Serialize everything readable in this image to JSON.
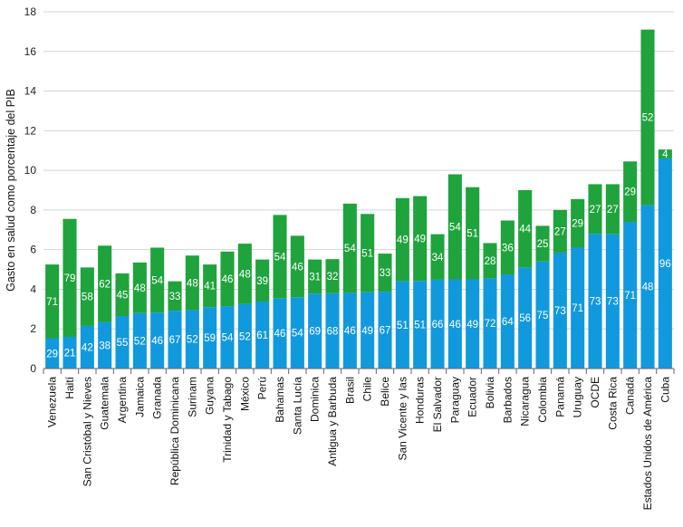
{
  "chart_data": {
    "type": "bar",
    "stacked": true,
    "title": "",
    "xlabel": "",
    "ylabel": "Gasto en salud como porcentaje del PIB",
    "ylim": [
      0,
      18
    ],
    "yticks": [
      0,
      2,
      4,
      6,
      8,
      10,
      12,
      14,
      16,
      18
    ],
    "grid": true,
    "legend": "none",
    "colors": {
      "bottom": "#1199DD",
      "top": "#1FA33C",
      "grid": "#d4d4d4"
    },
    "categories": [
      "Venezuela",
      "Haití",
      "San Cristóbal y Nieves",
      "Guatemala",
      "Argentina",
      "Jamaica",
      "Granada",
      "República Dominicana",
      "Surinam",
      "Guyana",
      "Trinidad y Tabago",
      "México",
      "Perú",
      "Bahamas",
      "Santa Lucía",
      "Dominica",
      "Antigua y Barbuda",
      "Brasil",
      "Chile",
      "Belice",
      "San Vicente y las",
      "Honduras",
      "El Salvador",
      "Paraguay",
      "Ecuador",
      "Bolivia",
      "Barbados",
      "Nicaragua",
      "Colombia",
      "Panamá",
      "Uruguay",
      "OCDE",
      "Costa Rica",
      "Canadá",
      "Estados Unidos de América",
      "Cuba"
    ],
    "series": [
      {
        "values": [
          1.53,
          1.6,
          2.15,
          2.35,
          2.65,
          2.8,
          2.82,
          2.92,
          2.95,
          3.1,
          3.15,
          3.25,
          3.38,
          3.55,
          3.6,
          3.78,
          3.8,
          3.82,
          3.85,
          3.88,
          4.4,
          4.42,
          4.48,
          4.5,
          4.5,
          4.55,
          4.75,
          5.1,
          5.4,
          5.85,
          6.1,
          6.8,
          6.8,
          7.4,
          8.25,
          10.6
        ],
        "labels": [
          "29",
          "21",
          "42",
          "38",
          "55",
          "52",
          "46",
          "67",
          "52",
          "59",
          "54",
          "52",
          "61",
          "46",
          "54",
          "69",
          "68",
          "46",
          "49",
          "67",
          "51",
          "51",
          "66",
          "46",
          "49",
          "72",
          "64",
          "56",
          "75",
          "73",
          "71",
          "73",
          "73",
          "71",
          "48",
          "96"
        ]
      },
      {
        "values": [
          3.72,
          5.95,
          2.95,
          3.85,
          2.15,
          2.55,
          3.28,
          1.48,
          2.75,
          2.15,
          2.75,
          3.05,
          2.12,
          4.2,
          3.1,
          1.72,
          1.72,
          4.5,
          3.95,
          1.92,
          4.2,
          4.28,
          2.3,
          5.3,
          4.65,
          1.78,
          2.72,
          3.9,
          1.8,
          2.15,
          2.45,
          2.5,
          2.5,
          3.05,
          8.85,
          0.45
        ],
        "labels": [
          "71",
          "79",
          "58",
          "62",
          "45",
          "48",
          "54",
          "33",
          "48",
          "41",
          "46",
          "48",
          "39",
          "54",
          "46",
          "31",
          "32",
          "54",
          "51",
          "33",
          "49",
          "49",
          "34",
          "54",
          "51",
          "28",
          "36",
          "44",
          "25",
          "27",
          "29",
          "27",
          "27",
          "29",
          "52",
          "4"
        ]
      }
    ]
  }
}
